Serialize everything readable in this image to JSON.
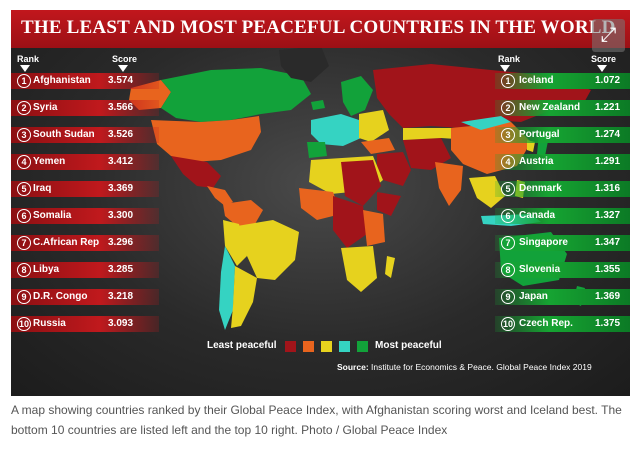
{
  "title": "THE LEAST AND MOST PEACEFUL COUNTRIES IN THE WORLD",
  "expand_icon": "expand-arrows-icon",
  "headers": {
    "rank": "Rank",
    "score": "Score"
  },
  "least_peaceful": [
    {
      "rank": "1",
      "country": "Afghanistan",
      "score": "3.574"
    },
    {
      "rank": "2",
      "country": "Syria",
      "score": "3.566"
    },
    {
      "rank": "3",
      "country": "South Sudan",
      "score": "3.526"
    },
    {
      "rank": "4",
      "country": "Yemen",
      "score": "3.412"
    },
    {
      "rank": "5",
      "country": "Iraq",
      "score": "3.369"
    },
    {
      "rank": "6",
      "country": "Somalia",
      "score": "3.300"
    },
    {
      "rank": "7",
      "country": "C.African Rep",
      "score": "3.296"
    },
    {
      "rank": "8",
      "country": "Libya",
      "score": "3.285"
    },
    {
      "rank": "9",
      "country": "D.R. Congo",
      "score": "3.218"
    },
    {
      "rank": "10",
      "country": "Russia",
      "score": "3.093"
    }
  ],
  "most_peaceful": [
    {
      "rank": "1",
      "country": "Iceland",
      "score": "1.072"
    },
    {
      "rank": "2",
      "country": "New Zealand",
      "score": "1.221"
    },
    {
      "rank": "3",
      "country": "Portugal",
      "score": "1.274"
    },
    {
      "rank": "4",
      "country": "Austria",
      "score": "1.291"
    },
    {
      "rank": "5",
      "country": "Denmark",
      "score": "1.316"
    },
    {
      "rank": "6",
      "country": "Canada",
      "score": "1.327"
    },
    {
      "rank": "7",
      "country": "Singapore",
      "score": "1.347"
    },
    {
      "rank": "8",
      "country": "Slovenia",
      "score": "1.355"
    },
    {
      "rank": "9",
      "country": "Japan",
      "score": "1.369"
    },
    {
      "rank": "10",
      "country": "Czech Rep.",
      "score": "1.375"
    }
  ],
  "legend": {
    "least_label": "Least peaceful",
    "most_label": "Most peaceful",
    "colors": [
      "#a1141a",
      "#e8641e",
      "#e6d21e",
      "#35d3c2",
      "#12a23a"
    ]
  },
  "source": {
    "label": "Source:",
    "text": "Institute for Economics & Peace. Global Peace Index 2019"
  },
  "caption": "A map showing countries ranked by their Global Peace Index, with Afghanistan scoring worst and Iceland best. The bottom 10 countries are listed left and the top 10 right. Photo / Global Peace Index"
}
